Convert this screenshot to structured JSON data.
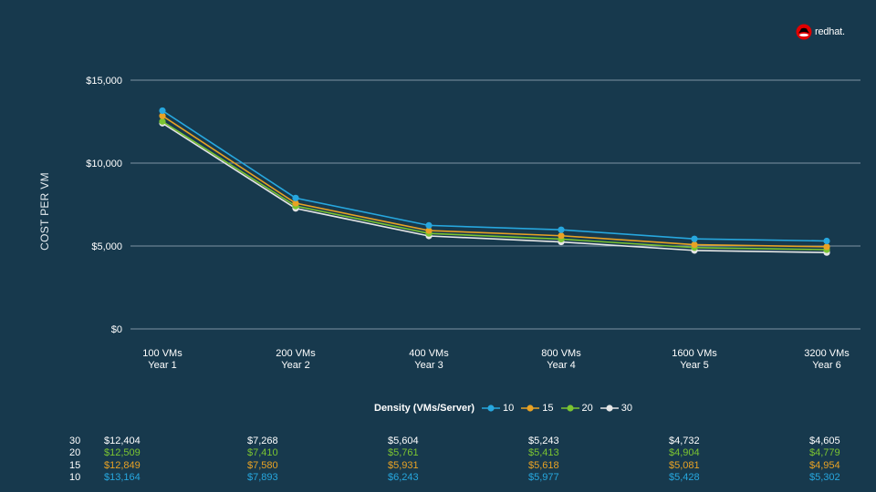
{
  "logo": {
    "text": "redhat."
  },
  "chart_data": {
    "type": "line",
    "ylabel": "COST PER VM",
    "yticks": [
      "$15,000",
      "$10,000",
      "$5,000",
      "$0"
    ],
    "ylim": [
      0,
      15000
    ],
    "grid": true,
    "categories": [
      [
        "100 VMs",
        "Year 1"
      ],
      [
        "200 VMs",
        "Year 2"
      ],
      [
        "400 VMs",
        "Year 3"
      ],
      [
        "800 VMs",
        "Year 4"
      ],
      [
        "1600 VMs",
        "Year 5"
      ],
      [
        "3200 VMs",
        "Year 6"
      ]
    ],
    "legend_title": "Density (VMs/Server)",
    "legend_position": "bottom",
    "series": [
      {
        "name": "10",
        "color": "#27a7de",
        "values": [
          13164,
          7893,
          6243,
          5977,
          5428,
          5302
        ],
        "labels": [
          "$13,164",
          "$7,893",
          "$6,243",
          "$5,977",
          "$5,428",
          "$5,302"
        ]
      },
      {
        "name": "15",
        "color": "#e8a224",
        "values": [
          12849,
          7580,
          5931,
          5618,
          5081,
          4954
        ],
        "labels": [
          "$12,849",
          "$7,580",
          "$5,931",
          "$5,618",
          "$5,081",
          "$4,954"
        ]
      },
      {
        "name": "20",
        "color": "#7bc431",
        "values": [
          12509,
          7410,
          5761,
          5413,
          4904,
          4779
        ],
        "labels": [
          "$12,509",
          "$7,410",
          "$5,761",
          "$5,413",
          "$4,904",
          "$4,779"
        ]
      },
      {
        "name": "30",
        "color": "#e6e6e6",
        "values": [
          12404,
          7268,
          5604,
          5243,
          4732,
          4605
        ],
        "labels": [
          "$12,404",
          "$7,268",
          "$5,604",
          "$5,243",
          "$4,732",
          "$4,605"
        ]
      }
    ],
    "table_row_order": [
      "30",
      "20",
      "15",
      "10"
    ]
  }
}
